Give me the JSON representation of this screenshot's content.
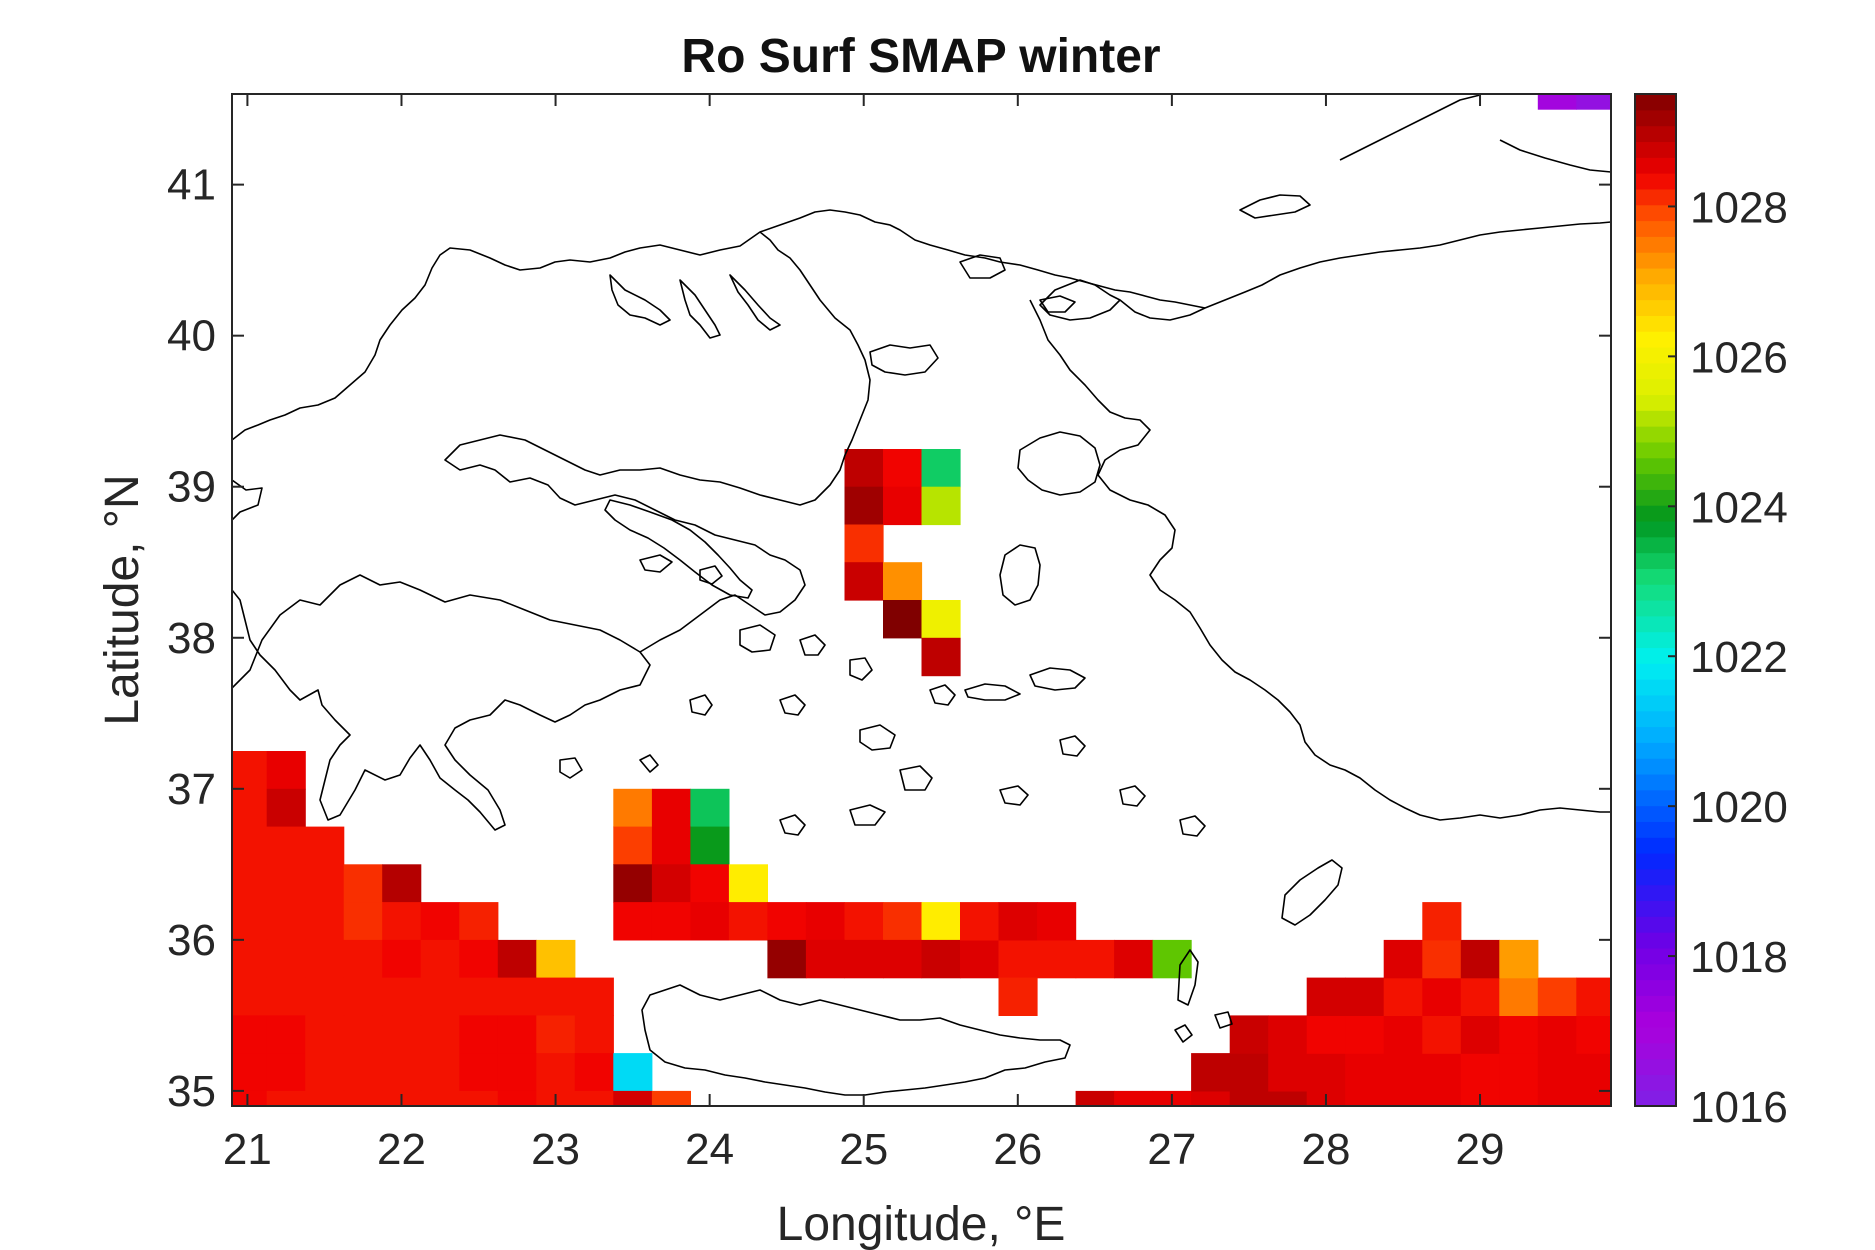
{
  "chart_data": {
    "type": "heatmap",
    "title": "Ro Surf SMAP winter",
    "xlabel": "Longitude, °E",
    "ylabel": "Latitude, °N",
    "xlim": [
      20.9,
      29.85
    ],
    "ylim": [
      34.9,
      41.6
    ],
    "xticks": [
      21,
      22,
      23,
      24,
      25,
      26,
      27,
      28,
      29
    ],
    "yticks": [
      35,
      36,
      37,
      38,
      39,
      40,
      41
    ],
    "colorbar": {
      "range": [
        1016,
        1029.5
      ],
      "ticks": [
        1016,
        1018,
        1020,
        1022,
        1024,
        1026,
        1028
      ],
      "colormap": "jet-like (purple → blue → cyan → green → yellow → orange → red → dark red)"
    },
    "cell_size_deg": [
      0.25,
      0.25
    ],
    "cells": [
      [
        21.0,
        37.125,
        1028.3
      ],
      [
        21.25,
        37.125,
        1028.5
      ],
      [
        21.0,
        36.875,
        1028.3
      ],
      [
        21.25,
        36.875,
        1028.8
      ],
      [
        21.0,
        36.625,
        1028.3
      ],
      [
        21.25,
        36.625,
        1028.3
      ],
      [
        21.5,
        36.625,
        1028.3
      ],
      [
        21.0,
        36.375,
        1028.3
      ],
      [
        21.25,
        36.375,
        1028.3
      ],
      [
        21.5,
        36.375,
        1028.3
      ],
      [
        21.75,
        36.375,
        1028.1
      ],
      [
        22.0,
        36.375,
        1029.0
      ],
      [
        21.0,
        36.125,
        1028.3
      ],
      [
        21.25,
        36.125,
        1028.3
      ],
      [
        21.5,
        36.125,
        1028.3
      ],
      [
        21.75,
        36.125,
        1028.1
      ],
      [
        22.0,
        36.125,
        1028.3
      ],
      [
        22.25,
        36.125,
        1028.4
      ],
      [
        22.5,
        36.125,
        1028.2
      ],
      [
        21.0,
        35.875,
        1028.3
      ],
      [
        21.25,
        35.875,
        1028.3
      ],
      [
        21.5,
        35.875,
        1028.3
      ],
      [
        21.75,
        35.875,
        1028.3
      ],
      [
        22.0,
        35.875,
        1028.4
      ],
      [
        22.25,
        35.875,
        1028.3
      ],
      [
        22.5,
        35.875,
        1028.4
      ],
      [
        22.75,
        35.875,
        1028.9
      ],
      [
        23.0,
        35.875,
        1026.8
      ],
      [
        21.0,
        35.625,
        1028.3
      ],
      [
        21.25,
        35.625,
        1028.3
      ],
      [
        21.5,
        35.625,
        1028.3
      ],
      [
        21.75,
        35.625,
        1028.3
      ],
      [
        22.0,
        35.625,
        1028.3
      ],
      [
        22.25,
        35.625,
        1028.3
      ],
      [
        22.5,
        35.625,
        1028.3
      ],
      [
        22.75,
        35.625,
        1028.3
      ],
      [
        23.0,
        35.625,
        1028.3
      ],
      [
        23.25,
        35.625,
        1028.3
      ],
      [
        21.0,
        35.375,
        1028.4
      ],
      [
        21.25,
        35.375,
        1028.4
      ],
      [
        21.5,
        35.375,
        1028.3
      ],
      [
        21.75,
        35.375,
        1028.3
      ],
      [
        22.0,
        35.375,
        1028.3
      ],
      [
        22.25,
        35.375,
        1028.3
      ],
      [
        22.5,
        35.375,
        1028.4
      ],
      [
        22.75,
        35.375,
        1028.4
      ],
      [
        23.0,
        35.375,
        1028.2
      ],
      [
        23.25,
        35.375,
        1028.3
      ],
      [
        21.0,
        35.125,
        1028.4
      ],
      [
        21.25,
        35.125,
        1028.4
      ],
      [
        21.5,
        35.125,
        1028.3
      ],
      [
        21.75,
        35.125,
        1028.3
      ],
      [
        22.0,
        35.125,
        1028.3
      ],
      [
        22.25,
        35.125,
        1028.3
      ],
      [
        22.5,
        35.125,
        1028.4
      ],
      [
        22.75,
        35.125,
        1028.4
      ],
      [
        23.0,
        35.125,
        1028.3
      ],
      [
        23.25,
        35.125,
        1028.4
      ],
      [
        23.5,
        35.125,
        1021.6
      ],
      [
        21.0,
        34.875,
        1028.4
      ],
      [
        21.25,
        34.875,
        1028.3
      ],
      [
        21.5,
        34.875,
        1028.3
      ],
      [
        21.75,
        34.875,
        1028.3
      ],
      [
        22.0,
        34.875,
        1028.3
      ],
      [
        22.25,
        34.875,
        1028.3
      ],
      [
        22.5,
        34.875,
        1028.3
      ],
      [
        22.75,
        34.875,
        1028.4
      ],
      [
        23.0,
        34.875,
        1028.3
      ],
      [
        23.25,
        34.875,
        1028.3
      ],
      [
        23.5,
        34.875,
        1028.7
      ],
      [
        23.75,
        34.875,
        1028.0
      ],
      [
        23.5,
        36.875,
        1027.5
      ],
      [
        23.75,
        36.875,
        1028.5
      ],
      [
        24.0,
        36.875,
        1023.3
      ],
      [
        23.5,
        36.625,
        1028.0
      ],
      [
        23.75,
        36.625,
        1028.5
      ],
      [
        24.0,
        36.625,
        1023.9
      ],
      [
        23.5,
        36.375,
        1029.3
      ],
      [
        23.75,
        36.375,
        1028.7
      ],
      [
        24.0,
        36.375,
        1028.4
      ],
      [
        24.25,
        36.375,
        1026.3
      ],
      [
        23.5,
        36.125,
        1028.4
      ],
      [
        23.75,
        36.125,
        1028.4
      ],
      [
        24.0,
        36.125,
        1028.5
      ],
      [
        24.25,
        36.125,
        1028.3
      ],
      [
        24.5,
        36.125,
        1028.4
      ],
      [
        24.75,
        36.125,
        1028.5
      ],
      [
        25.0,
        36.125,
        1028.3
      ],
      [
        25.25,
        36.125,
        1028.1
      ],
      [
        25.5,
        36.125,
        1026.3
      ],
      [
        24.5,
        35.875,
        1029.3
      ],
      [
        24.75,
        35.875,
        1028.6
      ],
      [
        25.0,
        35.875,
        1028.6
      ],
      [
        25.25,
        35.875,
        1028.6
      ],
      [
        25.5,
        35.875,
        1028.8
      ],
      [
        25.75,
        35.875,
        1028.6
      ],
      [
        26.0,
        35.875,
        1028.3
      ],
      [
        26.25,
        35.875,
        1028.3
      ],
      [
        26.5,
        35.875,
        1028.3
      ],
      [
        26.75,
        35.875,
        1028.6
      ],
      [
        27.0,
        35.875,
        1024.6
      ],
      [
        25.75,
        36.125,
        1028.3
      ],
      [
        26.0,
        36.125,
        1028.6
      ],
      [
        26.25,
        36.125,
        1028.5
      ],
      [
        26.0,
        35.625,
        1028.2
      ],
      [
        25.0,
        39.125,
        1028.9
      ],
      [
        25.25,
        39.125,
        1028.4
      ],
      [
        25.5,
        39.125,
        1023.2
      ],
      [
        25.0,
        38.875,
        1029.2
      ],
      [
        25.25,
        38.875,
        1028.5
      ],
      [
        25.5,
        38.875,
        1025.2
      ],
      [
        25.0,
        38.625,
        1028.1
      ],
      [
        25.0,
        38.375,
        1028.8
      ],
      [
        25.25,
        38.375,
        1027.3
      ],
      [
        25.25,
        38.125,
        1029.5
      ],
      [
        25.5,
        38.125,
        1025.9
      ],
      [
        25.5,
        37.875,
        1028.9
      ],
      [
        26.5,
        34.875,
        1028.8
      ],
      [
        26.75,
        34.875,
        1028.5
      ],
      [
        27.0,
        34.875,
        1028.5
      ],
      [
        27.25,
        34.875,
        1028.6
      ],
      [
        27.5,
        34.875,
        1028.9
      ],
      [
        27.75,
        34.875,
        1028.9
      ],
      [
        28.0,
        34.875,
        1028.6
      ],
      [
        28.25,
        34.875,
        1028.5
      ],
      [
        28.5,
        34.875,
        1028.5
      ],
      [
        28.75,
        34.875,
        1028.5
      ],
      [
        29.0,
        34.875,
        1028.4
      ],
      [
        29.25,
        34.875,
        1028.4
      ],
      [
        29.5,
        34.875,
        1028.5
      ],
      [
        29.75,
        34.875,
        1028.5
      ],
      [
        27.25,
        35.125,
        1028.9
      ],
      [
        27.5,
        35.125,
        1028.9
      ],
      [
        27.75,
        35.125,
        1028.6
      ],
      [
        28.0,
        35.125,
        1028.6
      ],
      [
        28.25,
        35.125,
        1028.5
      ],
      [
        28.5,
        35.125,
        1028.5
      ],
      [
        28.75,
        35.125,
        1028.5
      ],
      [
        29.0,
        35.125,
        1028.4
      ],
      [
        29.25,
        35.125,
        1028.4
      ],
      [
        29.5,
        35.125,
        1028.5
      ],
      [
        29.75,
        35.125,
        1028.5
      ],
      [
        27.5,
        35.375,
        1028.8
      ],
      [
        27.75,
        35.375,
        1028.6
      ],
      [
        28.0,
        35.375,
        1028.4
      ],
      [
        28.25,
        35.375,
        1028.4
      ],
      [
        28.5,
        35.375,
        1028.5
      ],
      [
        28.75,
        35.375,
        1028.3
      ],
      [
        29.0,
        35.375,
        1028.6
      ],
      [
        29.25,
        35.375,
        1028.4
      ],
      [
        29.5,
        35.375,
        1028.5
      ],
      [
        29.75,
        35.375,
        1028.4
      ],
      [
        28.0,
        35.625,
        1028.7
      ],
      [
        28.25,
        35.625,
        1028.7
      ],
      [
        28.5,
        35.625,
        1028.3
      ],
      [
        28.75,
        35.625,
        1028.5
      ],
      [
        29.0,
        35.625,
        1028.3
      ],
      [
        29.25,
        35.625,
        1027.5
      ],
      [
        29.5,
        35.625,
        1028.0
      ],
      [
        29.75,
        35.625,
        1028.3
      ],
      [
        28.5,
        35.875,
        1028.6
      ],
      [
        28.75,
        35.875,
        1028.1
      ],
      [
        29.0,
        35.875,
        1028.9
      ],
      [
        29.25,
        35.875,
        1027.2
      ],
      [
        28.75,
        36.125,
        1028.2
      ],
      [
        29.5,
        41.625,
        1016.9
      ],
      [
        29.75,
        41.625,
        1016.5
      ]
    ]
  }
}
